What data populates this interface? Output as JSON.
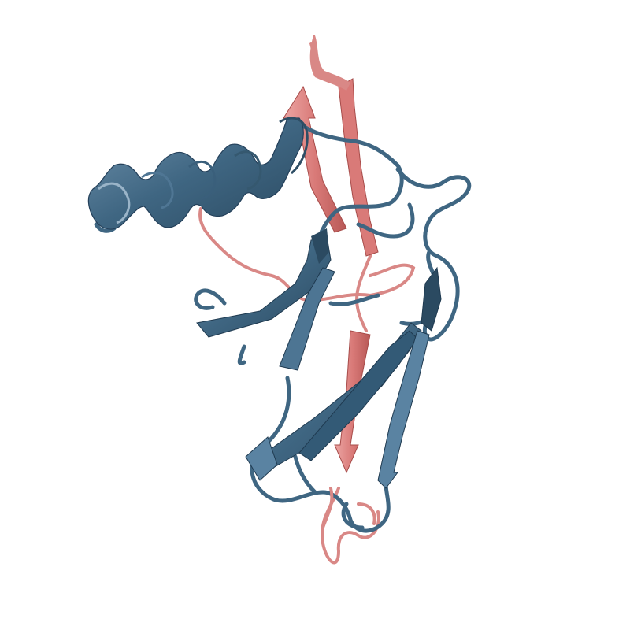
{
  "scene": {
    "background": "#ffffff",
    "colors": {
      "chain_a": "#3f6682",
      "chain_a_dark": "#2b4a61",
      "chain_a_light": "#6f92ad",
      "chain_b": "#d97a78",
      "chain_b_dark": "#b85856",
      "chain_b_light": "#eba5a3"
    },
    "representation": "cartoon"
  }
}
